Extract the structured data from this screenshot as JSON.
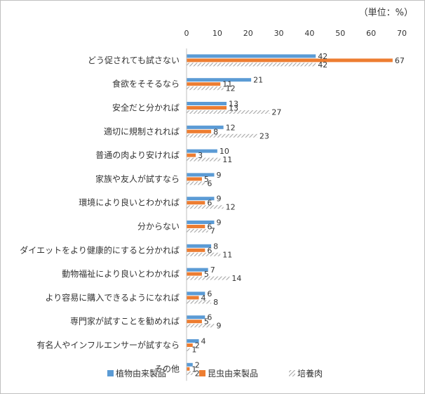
{
  "chart_data": {
    "type": "bar",
    "orientation": "horizontal",
    "unit_label": "（単位：%）",
    "categories": [
      "どう促されても試さない",
      "食欲をそそるなら",
      "安全だと分かれば",
      "適切に規制されれば",
      "普通の肉より安ければ",
      "家族や友人が試すなら",
      "環境により良いとわかれば",
      "分からない",
      "ダイエットをより健康的にすると分かれば",
      "動物福祉により良いとわかれば",
      "より容易に購入できるようになれば",
      "専門家が試すことを勧めれば",
      "有名人やインフルエンサーが試すなら",
      "その他"
    ],
    "series": [
      {
        "name": "植物由来製品",
        "color": "#5b9bd5",
        "pattern": "solid",
        "values": [
          42,
          21,
          13,
          12,
          10,
          9,
          9,
          9,
          8,
          7,
          6,
          6,
          4,
          2
        ]
      },
      {
        "name": "昆虫由来製品",
        "color": "#ed7d31",
        "pattern": "solid",
        "values": [
          67,
          11,
          13,
          8,
          3,
          5,
          6,
          6,
          6,
          5,
          4,
          5,
          2,
          1
        ]
      },
      {
        "name": "培養肉",
        "color": "#a6a6a6",
        "pattern": "hatch",
        "values": [
          42,
          12,
          27,
          23,
          11,
          6,
          12,
          7,
          11,
          14,
          8,
          9,
          1,
          2
        ]
      }
    ],
    "xlim": [
      0,
      70
    ],
    "xticks": [
      0,
      10,
      20,
      30,
      40,
      50,
      60,
      70
    ],
    "grid": false,
    "legend_position": "bottom"
  }
}
